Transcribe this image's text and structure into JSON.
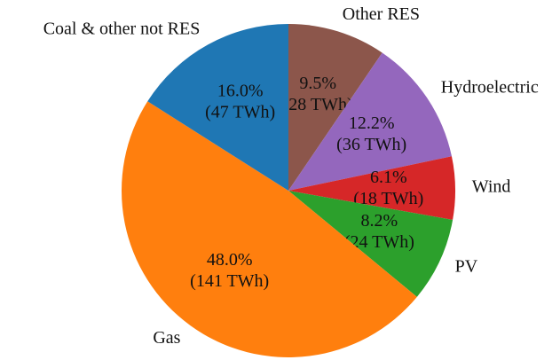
{
  "chart_data": {
    "type": "pie",
    "categories": [
      "Other RES",
      "Hydroelectric",
      "Wind",
      "PV",
      "Gas",
      "Coal & other not RES"
    ],
    "values": [
      9.5,
      12.2,
      6.1,
      8.2,
      48.0,
      16.0
    ],
    "value_labels": [
      "9.5%",
      "12.2%",
      "6.1%",
      "8.2%",
      "48.0%",
      "16.0%"
    ],
    "energy_labels": [
      "(28 TWh)",
      "(36 TWh)",
      "(18 TWh)",
      "(24 TWh)",
      "(141 TWh)",
      "(47 TWh)"
    ],
    "colors": [
      "#8c564b",
      "#9467bd",
      "#d62728",
      "#2ca02c",
      "#ff7f0e",
      "#1f77b4"
    ]
  }
}
